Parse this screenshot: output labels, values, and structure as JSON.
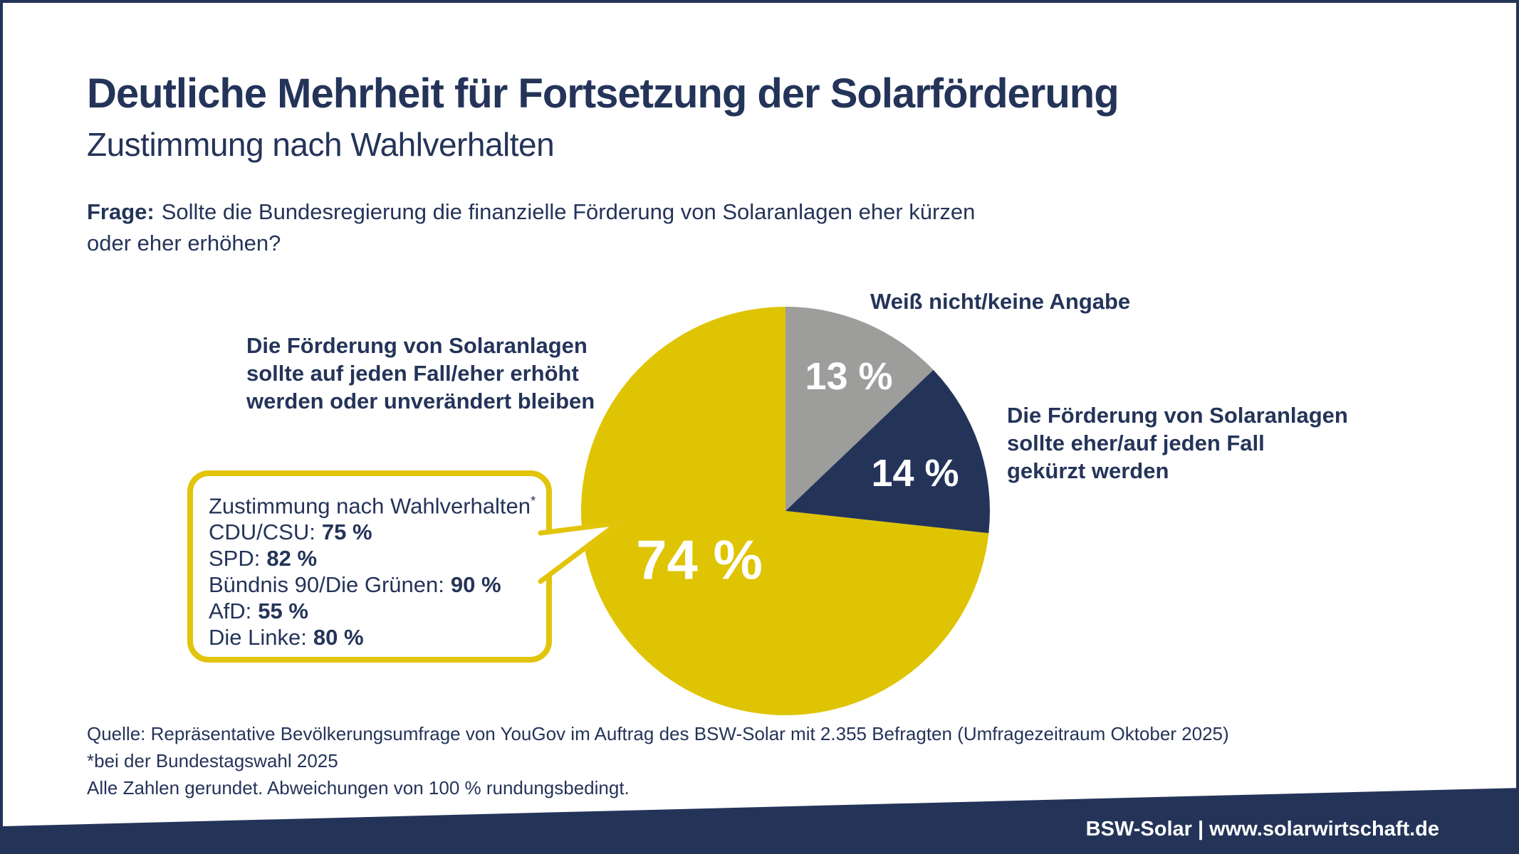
{
  "header": {
    "title": "Deutliche Mehrheit für Fortsetzung der Solarförderung",
    "subtitle": "Zustimmung nach Wahlverhalten"
  },
  "question": {
    "prefix": "Frage:",
    "text": "Sollte die Bundesregierung die finanzielle Förderung von Solaranlagen eher kürzen\noder eher erhöhen?"
  },
  "chart_data": {
    "type": "pie",
    "title": "Deutliche Mehrheit für Fortsetzung der Solarförderung",
    "subtitle": "Zustimmung nach Wahlverhalten",
    "start_angle_deg_from_12_oclock": 0,
    "direction": "clockwise",
    "legend_position": "outside-labels",
    "slices": [
      {
        "label": "Weiß nicht/keine Angabe",
        "value": 13,
        "pct_label": "13 %",
        "color": "#9d9d9c"
      },
      {
        "label": "Die Förderung von Solaranlagen\nsollte eher/auf jeden Fall\ngekürzt werden",
        "value": 14,
        "pct_label": "14 %",
        "color": "#243459"
      },
      {
        "label": "Die Förderung von Solaranlagen\nsollte auf jeden Fall/eher erhöht\nwerden oder unverändert bleiben",
        "value": 74,
        "pct_label": "74 %",
        "color": "#dfc404"
      }
    ],
    "callout": {
      "title": "Zustimmung nach Wahlverhalten",
      "superscript": "*",
      "parties": [
        {
          "name": "CDU/CSU:",
          "value": "75 %"
        },
        {
          "name": "SPD:",
          "value": "82 %"
        },
        {
          "name": "Bündnis 90/Die Grünen:",
          "value": "90 %"
        },
        {
          "name": "AfD:",
          "value": "55 %"
        },
        {
          "name": "Die Linke:",
          "value": "80 %"
        }
      ]
    }
  },
  "footnotes": {
    "lines": [
      "Quelle: Repräsentative Bevölkerungsumfrage von YouGov im Auftrag des BSW-Solar mit 2.355 Befragten (Umfragezeitraum Oktober 2025)",
      "*bei der Bundestagswahl 2025",
      "Alle Zahlen gerundet. Abweichungen von 100 % rundungsbedingt."
    ]
  },
  "footer": {
    "text": "BSW-Solar | www.solarwirtschaft.de"
  },
  "colors": {
    "navy": "#243459",
    "yellow": "#e2c40a",
    "gray": "#9d9d9c",
    "white": "#ffffff"
  }
}
